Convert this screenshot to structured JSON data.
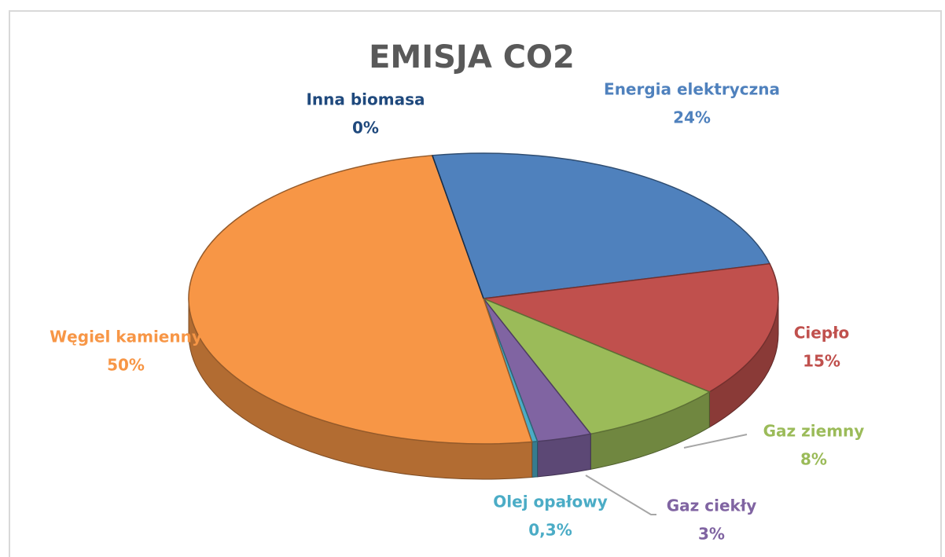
{
  "chart_data": {
    "type": "pie",
    "title": "EMISJA CO2",
    "categories": [
      "Energia elektryczna",
      "Ciepło",
      "Gaz ziemny",
      "Gaz ciekły",
      "Olej opałowy",
      "Węgiel kamienny",
      "Inna biomasa"
    ],
    "values": [
      24,
      15,
      8,
      3,
      0.3,
      50,
      0
    ],
    "value_labels": [
      "24%",
      "15%",
      "8%",
      "3%",
      "0,3%",
      "50%",
      "0%"
    ],
    "colors": [
      "#4f81bd",
      "#c0504d",
      "#9bbb59",
      "#8064a2",
      "#4bacc6",
      "#f79646",
      "#1f497d"
    ]
  }
}
